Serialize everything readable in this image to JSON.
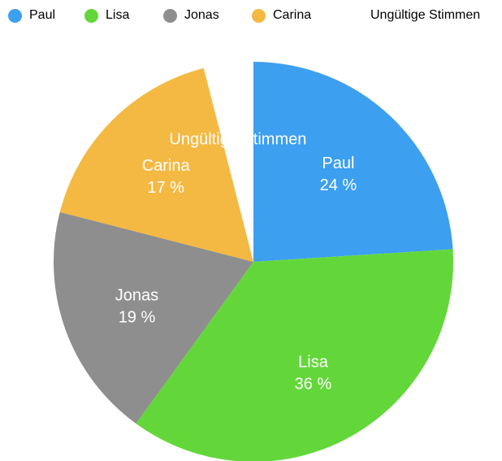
{
  "chart_data": {
    "type": "pie",
    "title": "",
    "legend_position": "top",
    "slices": [
      {
        "name": "Paul",
        "value": 24,
        "label_name": "Paul",
        "label_value": "24 %",
        "color": "#3d9ff0"
      },
      {
        "name": "Lisa",
        "value": 36,
        "label_name": "Lisa",
        "label_value": "36 %",
        "color": "#63d73a"
      },
      {
        "name": "Jonas",
        "value": 19,
        "label_name": "Jonas",
        "label_value": "19 %",
        "color": "#8e8e8e"
      },
      {
        "name": "Carina",
        "value": 17,
        "label_name": "Carina",
        "label_value": "17 %",
        "color": "#f4b942"
      },
      {
        "name": "Ungültige Stimmen",
        "value": 4,
        "label_name": "Ungültige Stimmen",
        "label_value": "",
        "color": "#ffffff"
      }
    ]
  }
}
